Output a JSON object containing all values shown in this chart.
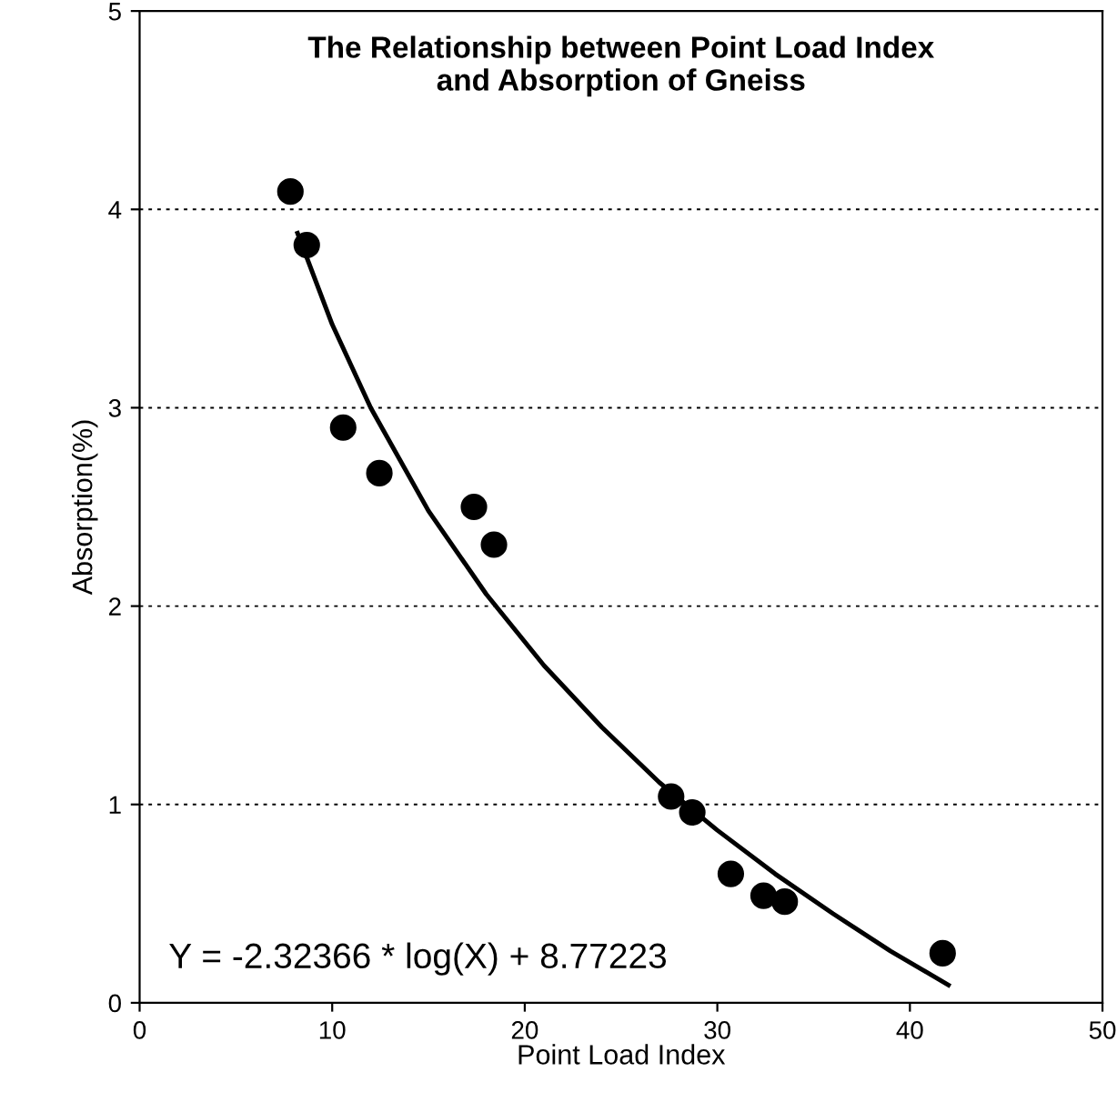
{
  "chart_data": {
    "type": "scatter",
    "title": "The Relationship between Point Load Index\nand Absorption of Gneiss",
    "xlabel": "Point Load Index",
    "ylabel": "Absorption(%)",
    "xlim": [
      0,
      50
    ],
    "xticks": [
      0,
      10,
      20,
      30,
      40,
      50
    ],
    "ylim": [
      0,
      5
    ],
    "yticks": [
      0,
      1,
      2,
      3,
      4,
      5
    ],
    "grid": "y",
    "marker": "circle",
    "legend": false,
    "annotations": [
      "Y = -2.32366 * log(X) + 8.77223"
    ],
    "series": [
      {
        "color": "#000000",
        "x": [
          7.83,
          8.68,
          10.57,
          12.45,
          17.36,
          18.4,
          27.6,
          28.7,
          30.7,
          32.4,
          33.5,
          41.7
        ],
        "values": [
          4.09,
          3.82,
          2.9,
          2.67,
          2.5,
          2.31,
          1.04,
          0.96,
          0.65,
          0.54,
          0.51,
          0.25
        ]
      },
      {
        "type": "line",
        "color": "#000000",
        "marker": "none",
        "line_style": "solid",
        "x": [
          8.2,
          10,
          12,
          15,
          18,
          21,
          24,
          27,
          30,
          33,
          36,
          39,
          42
        ],
        "values": [
          3.88,
          3.42,
          3.0,
          2.48,
          2.06,
          1.7,
          1.39,
          1.11,
          0.87,
          0.65,
          0.45,
          0.26,
          0.09
        ]
      }
    ]
  }
}
